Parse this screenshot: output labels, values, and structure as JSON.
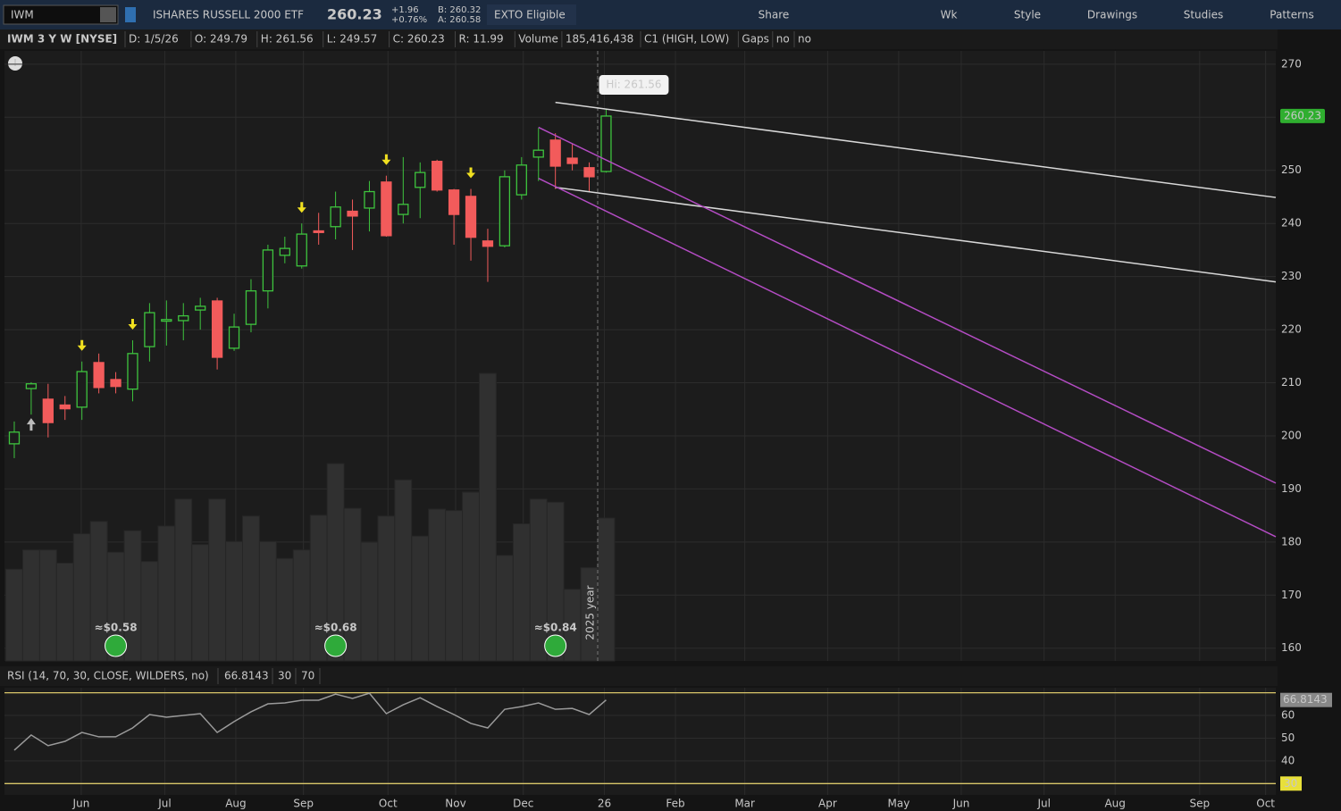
{
  "toolbar": {
    "symbol": "IWM",
    "description": "ISHARES RUSSELL 2000 ETF",
    "last": "260.23",
    "change": "+1.96",
    "change_pct": "+0.76%",
    "bid": "B: 260.32",
    "ask": "A: 260.58",
    "badge": "EXTO Eligible",
    "buttons": [
      "Share",
      "Wk",
      "Style",
      "Drawings",
      "Studies",
      "Patterns"
    ]
  },
  "info_bar": {
    "study": "IWM 3 Y W [NYSE]",
    "fields": [
      "D: 1/5/26",
      "O: 249.79",
      "H: 261.56",
      "L: 249.57",
      "C: 260.23",
      "R: 11.99",
      "Volume",
      "185,416,438",
      "C1 (HIGH, LOW)",
      "Gaps",
      "no",
      "no"
    ]
  },
  "chart_data": {
    "type": "candlestick",
    "open": [
      198.5,
      208.9,
      206.9,
      205.8,
      205.4,
      213.8,
      210.6,
      208.8,
      216.8,
      221.6,
      221.7,
      223.7,
      225.4,
      216.5,
      221,
      227.3,
      234,
      232,
      238.6,
      239.4,
      242.3,
      242.9,
      247.8,
      241.7,
      246.8,
      251.7,
      246.3,
      245.1,
      236.7,
      235.8,
      245.4,
      252.5,
      255.7,
      252.3,
      250.5,
      249.79
    ],
    "high": [
      202.7,
      210.1,
      209.8,
      207.5,
      214,
      215.5,
      212,
      218,
      225,
      225.5,
      225,
      226,
      226,
      223,
      229.5,
      236,
      237.5,
      240,
      242,
      246,
      244.5,
      248,
      249,
      252.5,
      251.5,
      252,
      246.5,
      246.5,
      239,
      250,
      252.5,
      258,
      257,
      255,
      251.5,
      261.56
    ],
    "low": [
      195.8,
      204,
      199.7,
      203,
      203,
      208,
      208,
      206.5,
      214,
      217,
      218,
      220,
      212.5,
      216,
      219.5,
      224,
      232.5,
      231.5,
      236,
      237,
      235,
      238.5,
      237.5,
      240,
      241,
      246,
      236,
      233,
      229,
      235.5,
      244.5,
      248,
      246.5,
      250,
      246,
      249.57
    ],
    "close": [
      200.7,
      209.8,
      202.5,
      205.1,
      212.1,
      209.1,
      209.3,
      215.5,
      223.2,
      221.9,
      222.6,
      224.4,
      214.8,
      220.5,
      227.3,
      235,
      235.3,
      238,
      238.3,
      243.1,
      241.4,
      246,
      237.7,
      243.6,
      249.6,
      246.3,
      241.7,
      237.4,
      235.7,
      248.8,
      251,
      253.8,
      250.8,
      251.3,
      248.8,
      260.23
    ],
    "volume": [
      119,
      144,
      144,
      127,
      165,
      181,
      141,
      169,
      129,
      175,
      210,
      151,
      210,
      155,
      188,
      155,
      133,
      144,
      189,
      256,
      198,
      154,
      188,
      235,
      162,
      197,
      195,
      219,
      373,
      137,
      178,
      210,
      206,
      93,
      121,
      185.4
    ],
    "ylim": [
      157.6,
      272.5
    ],
    "yticks": [
      160,
      170,
      180,
      190,
      200,
      210,
      220,
      230,
      240,
      250,
      260,
      270
    ],
    "xlim": [
      -0.58,
      74.6
    ],
    "xticks": [
      {
        "value": 3.96,
        "label": "Jun"
      },
      {
        "value": 8.9,
        "label": "Jul"
      },
      {
        "value": 13.1,
        "label": "Aug"
      },
      {
        "value": 17.1,
        "label": "Sep"
      },
      {
        "value": 22.1,
        "label": "Oct"
      },
      {
        "value": 26.1,
        "label": "Nov"
      },
      {
        "value": 30.1,
        "label": "Dec"
      },
      {
        "value": 34.9,
        "label": "26"
      },
      {
        "value": 39.1,
        "label": "Feb"
      },
      {
        "value": 43.2,
        "label": "Mar"
      },
      {
        "value": 48.1,
        "label": "Apr"
      },
      {
        "value": 52.3,
        "label": "May"
      },
      {
        "value": 56,
        "label": "Jun"
      },
      {
        "value": 60.9,
        "label": "Jul"
      },
      {
        "value": 65.1,
        "label": "Aug"
      },
      {
        "value": 70.1,
        "label": "Sep"
      },
      {
        "value": 74,
        "label": "Oct"
      }
    ],
    "up_color": "#3ec43e",
    "down_color": "#f25b5b",
    "hi_label": "Hi: 261.56",
    "down_arrows": [
      4,
      7,
      17,
      22,
      27
    ],
    "up_arrows": [
      1
    ],
    "dividends": [
      {
        "label": "≈$0.58",
        "x": 6
      },
      {
        "label": "≈$0.68",
        "x": 19
      },
      {
        "label": "≈$0.84",
        "x": 32
      }
    ],
    "year_separator": {
      "x": 34.5,
      "label": "2025 year"
    },
    "lines": [
      {
        "color": "#d8d8d8",
        "x": [
          32,
          74.6
        ],
        "y": [
          262.8,
          244.9
        ]
      },
      {
        "color": "#d8d8d8",
        "x": [
          32,
          74.6
        ],
        "y": [
          246.8,
          229
        ]
      },
      {
        "color": "#b44cc4",
        "x": [
          31,
          74.6
        ],
        "y": [
          258.1,
          191.1
        ]
      },
      {
        "color": "#b44cc4",
        "x": [
          31,
          74.6
        ],
        "y": [
          248.5,
          181
        ]
      }
    ],
    "rsi": {
      "label": "RSI (14, 70, 30, CLOSE, WILDERS, no)",
      "values": [
        44.7,
        51.4,
        46.7,
        48.6,
        52.5,
        50.6,
        50.6,
        54.5,
        60.4,
        59.2,
        60,
        60.8,
        52.5,
        57.3,
        61.6,
        65.1,
        65.5,
        66.7,
        66.7,
        69.4,
        67.5,
        69.8,
        60.8,
        64.7,
        67.8,
        63.9,
        60.4,
        56.5,
        54.5,
        62.7,
        63.9,
        65.5,
        62.7,
        63.1,
        60.4,
        66.8143
      ],
      "levels": [
        70,
        30
      ],
      "ylim": [
        25,
        72.2
      ],
      "yticks": [
        40,
        50,
        60
      ],
      "color": "#9a9a9a",
      "level_color": "#d9c66a"
    }
  }
}
